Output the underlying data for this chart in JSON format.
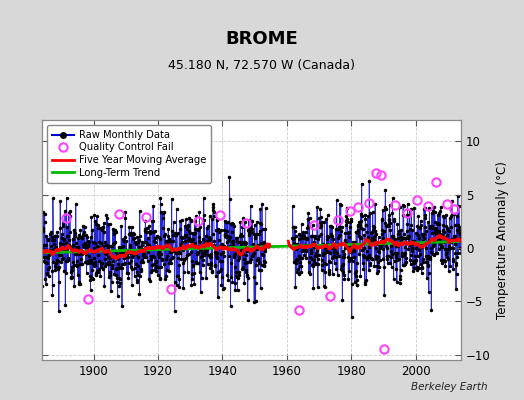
{
  "title": "BROME",
  "subtitle": "45.180 N, 72.570 W (Canada)",
  "ylabel": "Temperature Anomaly (°C)",
  "credit": "Berkeley Earth",
  "xlim": [
    1884,
    2014
  ],
  "ylim": [
    -10.5,
    12
  ],
  "yticks": [
    -10,
    -5,
    0,
    5,
    10
  ],
  "xticks": [
    1900,
    1920,
    1940,
    1960,
    1980,
    2000
  ],
  "raw_color": "#0000cc",
  "dot_color": "#000000",
  "qc_color": "#ff44ff",
  "moving_avg_color": "#ff0000",
  "trend_color": "#00bb00",
  "bg_color": "#d8d8d8",
  "plot_bg_color": "#ffffff",
  "seed": 17,
  "start_year": 1884,
  "end_year": 2013,
  "gap_start": 1953.5,
  "gap_end": 1961.5
}
